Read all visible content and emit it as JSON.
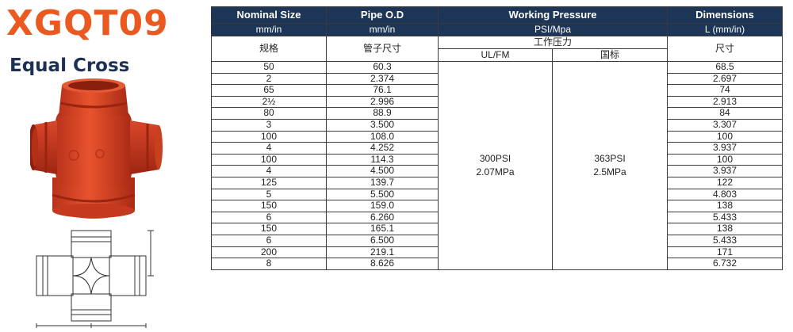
{
  "product": {
    "model": "XGQT09",
    "name": "Equal Cross",
    "image": "red-grooved-equal-cross-fitting",
    "drawing": "equal-cross-line-drawing",
    "brand_color": "#ea5a20",
    "header_color": "#1d3557"
  },
  "table": {
    "headers": {
      "nominal_size": "Nominal Size",
      "pipe_od": "Pipe O.D",
      "working_pressure": "Working Pressure",
      "dimensions": "Dimensions",
      "nominal_unit": "mm/in",
      "pipe_unit": "mm/in",
      "pressure_unit": "PSI/Mpa",
      "dimension_unit": "L (mm/in)",
      "nominal_cn": "规格",
      "pipe_cn": "管子尺寸",
      "pressure_cn": "工作压力",
      "dimension_cn": "尺寸",
      "ul_fm": "UL/FM",
      "national": "国标"
    },
    "pressure": {
      "ul_fm_psi": "300PSI",
      "ul_fm_mpa": "2.07MPa",
      "national_psi": "363PSI",
      "national_mpa": "2.5MPa"
    },
    "rows": [
      {
        "size": "50",
        "od": "60.3",
        "dim": "68.5"
      },
      {
        "size": "2",
        "od": "2.374",
        "dim": "2.697"
      },
      {
        "size": "65",
        "od": "76.1",
        "dim": "74"
      },
      {
        "size": "2½",
        "od": "2.996",
        "dim": "2.913"
      },
      {
        "size": "80",
        "od": "88.9",
        "dim": "84"
      },
      {
        "size": "3",
        "od": "3.500",
        "dim": "3.307"
      },
      {
        "size": "100",
        "od": "108.0",
        "dim": "100"
      },
      {
        "size": "4",
        "od": "4.252",
        "dim": "3.937"
      },
      {
        "size": "100",
        "od": "114.3",
        "dim": "100"
      },
      {
        "size": "4",
        "od": "4.500",
        "dim": "3.937"
      },
      {
        "size": "125",
        "od": "139.7",
        "dim": "122"
      },
      {
        "size": "5",
        "od": "5.500",
        "dim": "4.803"
      },
      {
        "size": "150",
        "od": "159.0",
        "dim": "138"
      },
      {
        "size": "6",
        "od": "6.260",
        "dim": "5.433"
      },
      {
        "size": "150",
        "od": "165.1",
        "dim": "138"
      },
      {
        "size": "6",
        "od": "6.500",
        "dim": "5.433"
      },
      {
        "size": "200",
        "od": "219.1",
        "dim": "171"
      },
      {
        "size": "8",
        "od": "8.626",
        "dim": "6.732"
      }
    ]
  }
}
